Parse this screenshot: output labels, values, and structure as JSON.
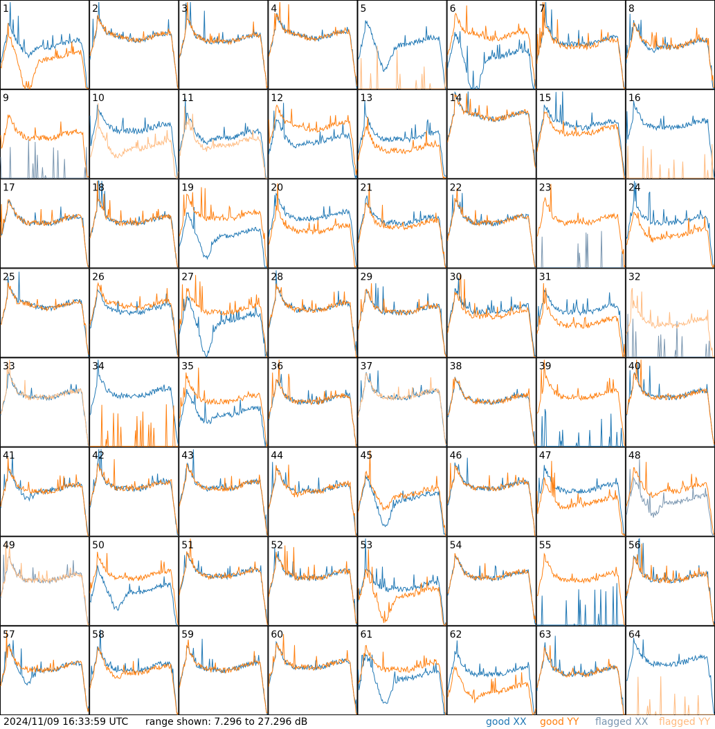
{
  "chart_data": {
    "type": "line",
    "layout": "8x8 small multiples of per-antenna spectra",
    "y_range_db": [
      7.296,
      27.296
    ],
    "colors": {
      "good_xx": "#1f77b4",
      "good_yy": "#ff7f0e",
      "flagged_xx": "#7a96b0",
      "flagged_yy": "#ffbb80"
    },
    "panels": [
      {
        "label": "1",
        "xx": "good",
        "yy": "good",
        "xx_level": 0.52,
        "yy_level": 0.38,
        "xx_dip": 0.15,
        "yy_dip": 0.45,
        "rfi": 0.9
      },
      {
        "label": "2",
        "xx": "good",
        "yy": "good",
        "xx_level": 0.6,
        "yy_level": 0.6,
        "xx_dip": 0.0,
        "yy_dip": 0.0,
        "rfi": 0.5
      },
      {
        "label": "3",
        "xx": "good",
        "yy": "good",
        "xx_level": 0.58,
        "yy_level": 0.58,
        "xx_dip": 0.05,
        "yy_dip": 0.05,
        "rfi": 0.5
      },
      {
        "label": "4",
        "xx": "good",
        "yy": "good",
        "xx_level": 0.62,
        "yy_level": 0.62,
        "xx_dip": 0.0,
        "yy_dip": 0.0,
        "rfi": 0.5
      },
      {
        "label": "5",
        "xx": "good",
        "yy": "flagged",
        "xx_level": 0.55,
        "yy_level": 0.0,
        "xx_dip": 0.35,
        "yy_dip": 0.0,
        "rfi": 0.4
      },
      {
        "label": "6",
        "xx": "good",
        "yy": "good",
        "xx_level": 0.4,
        "yy_level": 0.62,
        "xx_dip": 0.55,
        "yy_dip": 0.0,
        "rfi": 0.9
      },
      {
        "label": "7",
        "xx": "good",
        "yy": "good",
        "xx_level": 0.55,
        "yy_level": 0.52,
        "xx_dip": 0.05,
        "yy_dip": 0.05,
        "rfi": 0.6
      },
      {
        "label": "8",
        "xx": "good",
        "yy": "good",
        "xx_level": 0.52,
        "yy_level": 0.52,
        "xx_dip": 0.1,
        "yy_dip": 0.05,
        "rfi": 0.8
      },
      {
        "label": "9",
        "xx": "flagged",
        "yy": "good",
        "xx_level": 0.0,
        "yy_level": 0.5,
        "xx_dip": 0.0,
        "yy_dip": 0.05,
        "rfi": 0.5
      },
      {
        "label": "10",
        "xx": "good",
        "yy": "flagged",
        "xx_level": 0.58,
        "yy_level": 0.38,
        "xx_dip": 0.05,
        "yy_dip": 0.15,
        "rfi": 0.6
      },
      {
        "label": "11",
        "xx": "good",
        "yy": "flagged",
        "xx_level": 0.5,
        "yy_level": 0.42,
        "xx_dip": 0.1,
        "yy_dip": 0.1,
        "rfi": 0.6
      },
      {
        "label": "12",
        "xx": "good",
        "yy": "good",
        "xx_level": 0.45,
        "yy_level": 0.6,
        "xx_dip": 0.1,
        "yy_dip": 0.0,
        "rfi": 0.6
      },
      {
        "label": "13",
        "xx": "good",
        "yy": "good",
        "xx_level": 0.48,
        "yy_level": 0.35,
        "xx_dip": 0.05,
        "yy_dip": 0.05,
        "rfi": 0.9
      },
      {
        "label": "14",
        "xx": "good",
        "yy": "good",
        "xx_level": 0.72,
        "yy_level": 0.72,
        "xx_dip": 0.0,
        "yy_dip": 0.0,
        "rfi": 0.4
      },
      {
        "label": "15",
        "xx": "good",
        "yy": "good",
        "xx_level": 0.62,
        "yy_level": 0.55,
        "xx_dip": 0.0,
        "yy_dip": 0.05,
        "rfi": 0.5
      },
      {
        "label": "16",
        "xx": "good",
        "yy": "flagged",
        "xx_level": 0.62,
        "yy_level": 0.0,
        "xx_dip": 0.05,
        "yy_dip": 0.0,
        "rfi": 0.4
      },
      {
        "label": "17",
        "xx": "good",
        "yy": "good",
        "xx_level": 0.55,
        "yy_level": 0.55,
        "xx_dip": 0.05,
        "yy_dip": 0.05,
        "rfi": 0.5
      },
      {
        "label": "18",
        "xx": "good",
        "yy": "good",
        "xx_level": 0.55,
        "yy_level": 0.55,
        "xx_dip": 0.05,
        "yy_dip": 0.05,
        "rfi": 0.6
      },
      {
        "label": "19",
        "xx": "good",
        "yy": "good",
        "xx_level": 0.4,
        "yy_level": 0.6,
        "xx_dip": 0.3,
        "yy_dip": 0.05,
        "rfi": 0.6
      },
      {
        "label": "20",
        "xx": "good",
        "yy": "good",
        "xx_level": 0.6,
        "yy_level": 0.45,
        "xx_dip": 0.05,
        "yy_dip": 0.05,
        "rfi": 0.6
      },
      {
        "label": "21",
        "xx": "good",
        "yy": "good",
        "xx_level": 0.55,
        "yy_level": 0.5,
        "xx_dip": 0.05,
        "yy_dip": 0.05,
        "rfi": 0.6
      },
      {
        "label": "22",
        "xx": "good",
        "yy": "good",
        "xx_level": 0.55,
        "yy_level": 0.55,
        "xx_dip": 0.05,
        "yy_dip": 0.05,
        "rfi": 0.5
      },
      {
        "label": "23",
        "xx": "flagged",
        "yy": "good",
        "xx_level": 0.0,
        "yy_level": 0.55,
        "xx_dip": 0.0,
        "yy_dip": 0.05,
        "rfi": 0.5
      },
      {
        "label": "24",
        "xx": "good",
        "yy": "good",
        "xx_level": 0.55,
        "yy_level": 0.4,
        "xx_dip": 0.05,
        "yy_dip": 0.1,
        "rfi": 0.6
      },
      {
        "label": "25",
        "xx": "good",
        "yy": "good",
        "xx_level": 0.6,
        "yy_level": 0.6,
        "xx_dip": 0.0,
        "yy_dip": 0.0,
        "rfi": 0.4
      },
      {
        "label": "26",
        "xx": "good",
        "yy": "good",
        "xx_level": 0.55,
        "yy_level": 0.6,
        "xx_dip": 0.05,
        "yy_dip": 0.0,
        "rfi": 0.5
      },
      {
        "label": "27",
        "xx": "good",
        "yy": "good",
        "xx_level": 0.45,
        "yy_level": 0.55,
        "xx_dip": 0.45,
        "yy_dip": 0.05,
        "rfi": 0.9
      },
      {
        "label": "28",
        "xx": "good",
        "yy": "good",
        "xx_level": 0.58,
        "yy_level": 0.58,
        "xx_dip": 0.05,
        "yy_dip": 0.05,
        "rfi": 0.6
      },
      {
        "label": "29",
        "xx": "good",
        "yy": "good",
        "xx_level": 0.55,
        "yy_level": 0.55,
        "xx_dip": 0.05,
        "yy_dip": 0.05,
        "rfi": 0.5
      },
      {
        "label": "30",
        "xx": "good",
        "yy": "good",
        "xx_level": 0.55,
        "yy_level": 0.5,
        "xx_dip": 0.05,
        "yy_dip": 0.05,
        "rfi": 0.6
      },
      {
        "label": "31",
        "xx": "good",
        "yy": "good",
        "xx_level": 0.55,
        "yy_level": 0.4,
        "xx_dip": 0.05,
        "yy_dip": 0.05,
        "rfi": 0.6
      },
      {
        "label": "32",
        "xx": "flagged",
        "yy": "flagged",
        "xx_level": 0.0,
        "yy_level": 0.4,
        "xx_dip": 0.0,
        "yy_dip": 0.05,
        "rfi": 0.7
      },
      {
        "label": "33",
        "xx": "good",
        "yy": "flagged",
        "xx_level": 0.6,
        "yy_level": 0.6,
        "xx_dip": 0.05,
        "yy_dip": 0.05,
        "rfi": 0.4
      },
      {
        "label": "34",
        "xx": "good",
        "yy": "good",
        "xx_level": 0.62,
        "yy_level": 0.0,
        "xx_dip": 0.05,
        "yy_dip": 0.0,
        "rfi": 0.5
      },
      {
        "label": "35",
        "xx": "good",
        "yy": "good",
        "xx_level": 0.4,
        "yy_level": 0.55,
        "xx_dip": 0.15,
        "yy_dip": 0.05,
        "rfi": 0.6
      },
      {
        "label": "36",
        "xx": "good",
        "yy": "good",
        "xx_level": 0.55,
        "yy_level": 0.55,
        "xx_dip": 0.05,
        "yy_dip": 0.05,
        "rfi": 0.6
      },
      {
        "label": "37",
        "xx": "good",
        "yy": "flagged",
        "xx_level": 0.6,
        "yy_level": 0.6,
        "xx_dip": 0.05,
        "yy_dip": 0.05,
        "rfi": 0.5
      },
      {
        "label": "38",
        "xx": "good",
        "yy": "good",
        "xx_level": 0.55,
        "yy_level": 0.55,
        "xx_dip": 0.05,
        "yy_dip": 0.05,
        "rfi": 0.4
      },
      {
        "label": "39",
        "xx": "good",
        "yy": "good",
        "xx_level": 0.0,
        "yy_level": 0.6,
        "xx_dip": 0.0,
        "yy_dip": 0.05,
        "rfi": 0.5
      },
      {
        "label": "40",
        "xx": "good",
        "yy": "good",
        "xx_level": 0.6,
        "yy_level": 0.6,
        "xx_dip": 0.05,
        "yy_dip": 0.05,
        "rfi": 0.6
      },
      {
        "label": "41",
        "xx": "good",
        "yy": "good",
        "xx_level": 0.55,
        "yy_level": 0.55,
        "xx_dip": 0.15,
        "yy_dip": 0.05,
        "rfi": 0.5
      },
      {
        "label": "42",
        "xx": "good",
        "yy": "good",
        "xx_level": 0.58,
        "yy_level": 0.58,
        "xx_dip": 0.05,
        "yy_dip": 0.05,
        "rfi": 0.5
      },
      {
        "label": "43",
        "xx": "good",
        "yy": "good",
        "xx_level": 0.58,
        "yy_level": 0.58,
        "xx_dip": 0.05,
        "yy_dip": 0.05,
        "rfi": 0.5
      },
      {
        "label": "44",
        "xx": "good",
        "yy": "good",
        "xx_level": 0.55,
        "yy_level": 0.55,
        "xx_dip": 0.05,
        "yy_dip": 0.1,
        "rfi": 0.7
      },
      {
        "label": "45",
        "xx": "good",
        "yy": "good",
        "xx_level": 0.45,
        "yy_level": 0.5,
        "xx_dip": 0.35,
        "yy_dip": 0.2,
        "rfi": 0.6
      },
      {
        "label": "46",
        "xx": "good",
        "yy": "good",
        "xx_level": 0.58,
        "yy_level": 0.58,
        "xx_dip": 0.05,
        "yy_dip": 0.05,
        "rfi": 0.5
      },
      {
        "label": "47",
        "xx": "good",
        "yy": "good",
        "xx_level": 0.55,
        "yy_level": 0.4,
        "xx_dip": 0.05,
        "yy_dip": 0.1,
        "rfi": 0.6
      },
      {
        "label": "48",
        "xx": "flagged",
        "yy": "good",
        "xx_level": 0.42,
        "yy_level": 0.55,
        "xx_dip": 0.2,
        "yy_dip": 0.1,
        "rfi": 0.5
      },
      {
        "label": "49",
        "xx": "flagged",
        "yy": "flagged",
        "xx_level": 0.55,
        "yy_level": 0.55,
        "xx_dip": 0.05,
        "yy_dip": 0.05,
        "rfi": 0.4
      },
      {
        "label": "50",
        "xx": "good",
        "yy": "good",
        "xx_level": 0.42,
        "yy_level": 0.58,
        "xx_dip": 0.25,
        "yy_dip": 0.05,
        "rfi": 0.6
      },
      {
        "label": "51",
        "xx": "good",
        "yy": "good",
        "xx_level": 0.6,
        "yy_level": 0.6,
        "xx_dip": 0.05,
        "yy_dip": 0.05,
        "rfi": 0.6
      },
      {
        "label": "52",
        "xx": "good",
        "yy": "good",
        "xx_level": 0.58,
        "yy_level": 0.58,
        "xx_dip": 0.05,
        "yy_dip": 0.05,
        "rfi": 0.6
      },
      {
        "label": "53",
        "xx": "good",
        "yy": "good",
        "xx_level": 0.45,
        "yy_level": 0.38,
        "xx_dip": 0.05,
        "yy_dip": 0.35,
        "rfi": 0.9
      },
      {
        "label": "54",
        "xx": "good",
        "yy": "good",
        "xx_level": 0.58,
        "yy_level": 0.58,
        "xx_dip": 0.05,
        "yy_dip": 0.05,
        "rfi": 0.5
      },
      {
        "label": "55",
        "xx": "good",
        "yy": "good",
        "xx_level": 0.0,
        "yy_level": 0.55,
        "xx_dip": 0.0,
        "yy_dip": 0.05,
        "rfi": 0.5
      },
      {
        "label": "56",
        "xx": "good",
        "yy": "good",
        "xx_level": 0.55,
        "yy_level": 0.55,
        "xx_dip": 0.05,
        "yy_dip": 0.05,
        "rfi": 0.7
      },
      {
        "label": "57",
        "xx": "good",
        "yy": "good",
        "xx_level": 0.55,
        "yy_level": 0.55,
        "xx_dip": 0.2,
        "yy_dip": 0.05,
        "rfi": 0.5
      },
      {
        "label": "58",
        "xx": "good",
        "yy": "good",
        "xx_level": 0.55,
        "yy_level": 0.52,
        "xx_dip": 0.05,
        "yy_dip": 0.1,
        "rfi": 0.6
      },
      {
        "label": "59",
        "xx": "good",
        "yy": "good",
        "xx_level": 0.55,
        "yy_level": 0.55,
        "xx_dip": 0.05,
        "yy_dip": 0.05,
        "rfi": 0.5
      },
      {
        "label": "60",
        "xx": "good",
        "yy": "good",
        "xx_level": 0.58,
        "yy_level": 0.58,
        "xx_dip": 0.05,
        "yy_dip": 0.05,
        "rfi": 0.5
      },
      {
        "label": "61",
        "xx": "good",
        "yy": "good",
        "xx_level": 0.45,
        "yy_level": 0.55,
        "xx_dip": 0.35,
        "yy_dip": 0.05,
        "rfi": 0.9
      },
      {
        "label": "62",
        "xx": "good",
        "yy": "good",
        "xx_level": 0.5,
        "yy_level": 0.3,
        "xx_dip": 0.05,
        "yy_dip": 0.15,
        "rfi": 0.7
      },
      {
        "label": "63",
        "xx": "good",
        "yy": "good",
        "xx_level": 0.5,
        "yy_level": 0.5,
        "xx_dip": 0.05,
        "yy_dip": 0.05,
        "rfi": 0.6
      },
      {
        "label": "64",
        "xx": "good",
        "yy": "flagged",
        "xx_level": 0.62,
        "yy_level": 0.0,
        "xx_dip": 0.05,
        "yy_dip": 0.0,
        "rfi": 0.5
      }
    ]
  },
  "footer": {
    "timestamp": "2024/11/09 16:33:59 UTC",
    "range_text": "range shown: 7.296 to 27.296 dB",
    "legend": {
      "good_xx": "good XX",
      "good_yy": "good YY",
      "flagged_xx": "flagged XX",
      "flagged_yy": "flagged YY"
    }
  }
}
